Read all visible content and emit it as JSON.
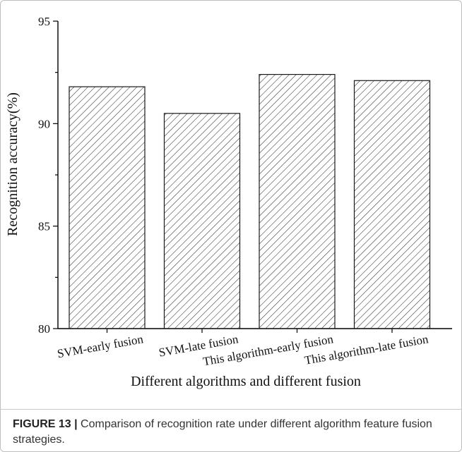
{
  "chart_data": {
    "type": "bar",
    "title": "",
    "xlabel": "Different algorithms and different fusion",
    "ylabel": "Recognition accuracy(%)",
    "categories": [
      "SVM-early fusion",
      "SVM-late fusion",
      "This algorithm-early fusion",
      "This algorithm-late fusion"
    ],
    "values": [
      91.8,
      90.5,
      92.4,
      92.1
    ],
    "ylim": [
      80,
      95
    ],
    "yticks": [
      80,
      85,
      90,
      95
    ],
    "grid": false,
    "legend": "none",
    "bar_fill": "hatched",
    "colors": {
      "bar_stroke": "#1a1a1a",
      "hatch": "#333333",
      "axis": "#000000"
    }
  },
  "caption": {
    "label": "FIGURE 13 |",
    "text": " Comparison of recognition rate under different algorithm feature fusion strategies."
  }
}
